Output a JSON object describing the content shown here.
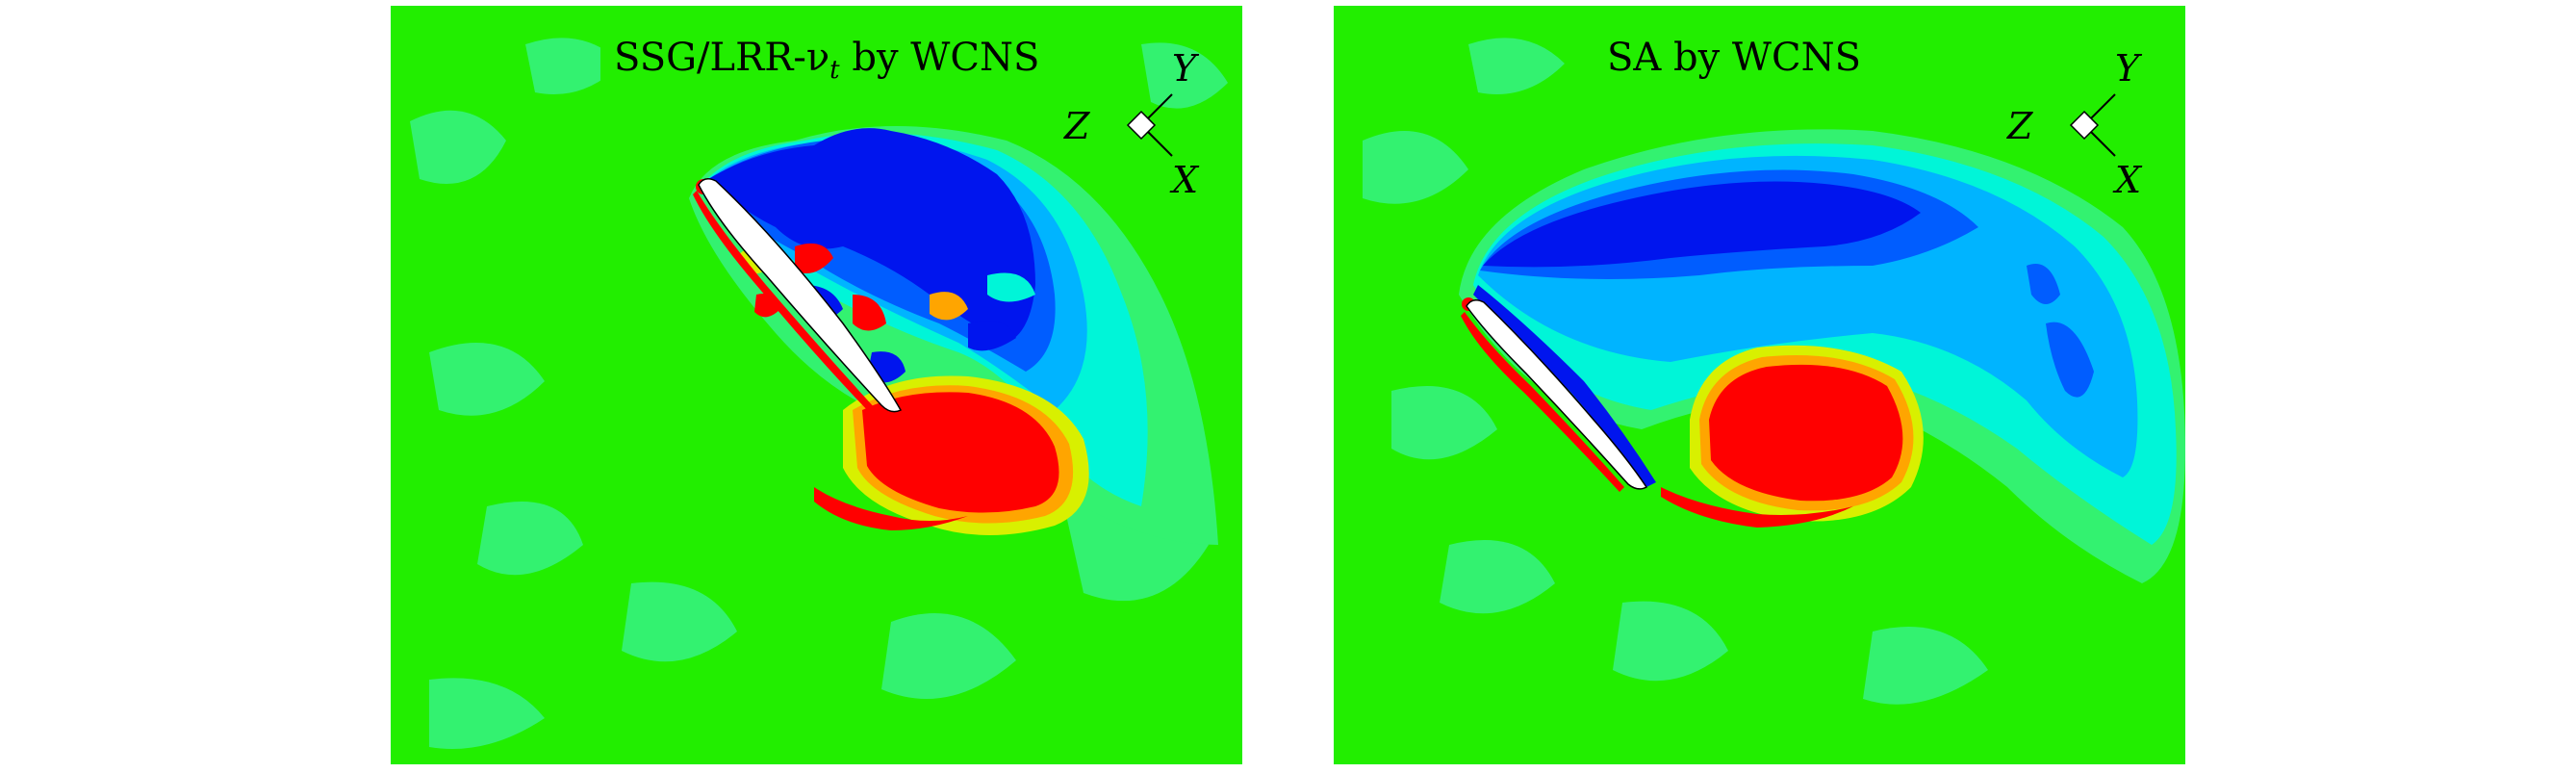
{
  "panels": [
    {
      "title_main": "SSG/LRR-ν",
      "title_sub": "t",
      "title_tail": " by WCNS",
      "axes": {
        "y": "Y",
        "x": "X",
        "z": "Z"
      }
    },
    {
      "title_main": "SA by WCNS",
      "title_sub": "",
      "title_tail": "",
      "axes": {
        "y": "Y",
        "x": "X",
        "z": "Z"
      }
    }
  ],
  "colors": {
    "background_field": "#22ee00",
    "level_light_green": "#33f270",
    "level_cyan": "#00f5d8",
    "level_sky": "#00b4ff",
    "level_blue_mid": "#005dff",
    "level_blue": "#0015ee",
    "level_yellow": "#d8f000",
    "level_orange": "#ffa500",
    "level_red": "#ff0000",
    "airfoil": "#ffffff"
  }
}
